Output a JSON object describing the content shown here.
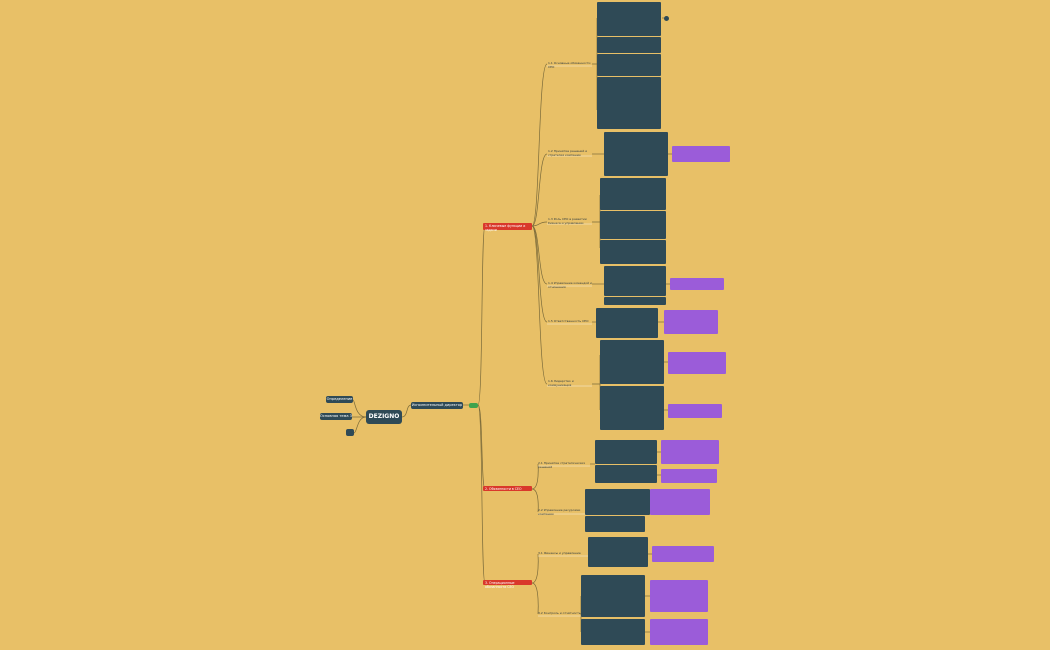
{
  "root": {
    "label": "DEZIGNO"
  },
  "side_nodes": [
    {
      "label": "Определение"
    },
    {
      "label": "Основная тема 3"
    },
    {
      "label": ""
    }
  ],
  "director": {
    "label": "Исполнительный директор"
  },
  "branches": [
    {
      "label": "1. Ключевые функции и задачи",
      "sub": [
        {
          "label": "1.1 Основные обязанности CEO"
        },
        {
          "label": "1.2 Принятие решений и стратегия компании"
        },
        {
          "label": "1.3 Роль CEO в развитии бизнеса и управлении"
        },
        {
          "label": "1.4 Управление командой и отношения"
        },
        {
          "label": "1.5 Ответственность CEO"
        },
        {
          "label": "1.6 Лидерство и коммуникация"
        }
      ]
    },
    {
      "label": "2. Обязанности в CEO",
      "sub": [
        {
          "label": "2.1 Принятие стратегических решений"
        },
        {
          "label": "2.2 Управление ресурсами компании"
        }
      ]
    },
    {
      "label": "3. Операционные обязанности CEO",
      "sub": [
        {
          "label": "3.1 Финансы и управление"
        },
        {
          "label": "3.2 Контроль и отчётность"
        }
      ]
    }
  ]
}
